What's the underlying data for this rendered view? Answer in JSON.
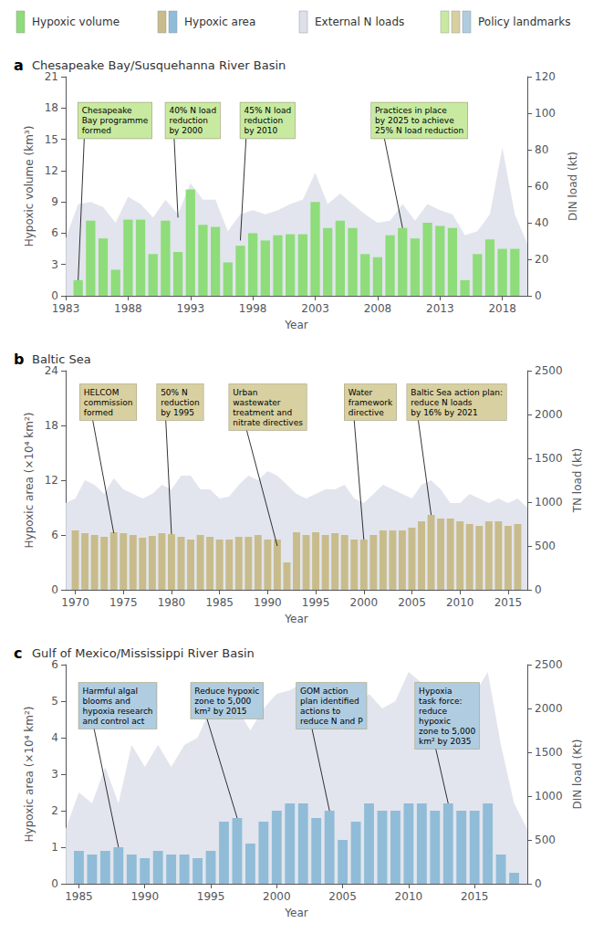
{
  "chart_data": [
    {
      "type": "bar",
      "label": "a",
      "title": "Chesapeake Bay/Susquehanna River Basin",
      "xlabel": "Year",
      "ylabel": "Hypoxic volume (km³)",
      "y2label": "DIN load (kt)",
      "xlim": [
        1983,
        2020
      ],
      "xticks": [
        1983,
        1988,
        1993,
        1998,
        2003,
        2008,
        2013,
        2018
      ],
      "ylim": [
        0,
        21
      ],
      "yticks": [
        0,
        3,
        6,
        9,
        12,
        15,
        18,
        21
      ],
      "y2lim": [
        0,
        120
      ],
      "y2ticks": [
        0,
        20,
        40,
        60,
        80,
        100,
        120
      ],
      "grid": false,
      "legend": "top",
      "series": [
        {
          "name": "Hypoxic volume",
          "type": "bar",
          "color": "#8edc7a",
          "x": [
            1984,
            1985,
            1986,
            1987,
            1988,
            1989,
            1990,
            1991,
            1992,
            1993,
            1994,
            1995,
            1996,
            1997,
            1998,
            1999,
            2000,
            2001,
            2002,
            2003,
            2004,
            2005,
            2006,
            2007,
            2008,
            2009,
            2010,
            2011,
            2012,
            2013,
            2014,
            2015,
            2016,
            2017,
            2018,
            2019
          ],
          "values": [
            1.5,
            7.2,
            5.5,
            2.5,
            7.3,
            7.3,
            4.0,
            7.2,
            4.2,
            10.2,
            6.8,
            6.6,
            3.2,
            4.8,
            6.0,
            5.3,
            5.8,
            5.9,
            5.9,
            9.0,
            6.5,
            7.2,
            6.5,
            4.0,
            3.7,
            5.8,
            6.5,
            5.5,
            7.0,
            6.7,
            6.5,
            1.5,
            4.0,
            5.4,
            4.5,
            4.5
          ]
        },
        {
          "name": "External N loads",
          "type": "area",
          "color": "#dde0ea",
          "x": [
            1983,
            1984,
            1985,
            1986,
            1987,
            1988,
            1989,
            1990,
            1991,
            1992,
            1993,
            1994,
            1995,
            1996,
            1997,
            1998,
            1999,
            2000,
            2001,
            2002,
            2003,
            2004,
            2005,
            2006,
            2007,
            2008,
            2009,
            2010,
            2011,
            2012,
            2013,
            2014,
            2015,
            2016,
            2017,
            2018,
            2019,
            2020
          ],
          "values": [
            5.5,
            8.8,
            9.0,
            8.5,
            7.0,
            9.5,
            8.8,
            7.5,
            9.2,
            7.8,
            10.8,
            9.2,
            9.2,
            6.2,
            7.8,
            8.2,
            7.8,
            8.2,
            8.8,
            9.2,
            11.8,
            8.8,
            9.8,
            8.8,
            7.8,
            7.0,
            7.2,
            8.8,
            7.2,
            8.8,
            8.2,
            7.8,
            5.8,
            6.2,
            7.8,
            14.2,
            7.8,
            5.0
          ]
        }
      ],
      "annotations": {
        "name": "Policy landmarks",
        "color": "#c8eaa0",
        "items": [
          {
            "text": "Chesapeake\nBay programme\nformed",
            "x": 1984,
            "y": 1.5,
            "text_x": 1984.0,
            "text_y": 18.5
          },
          {
            "text": "40% N load\nreduction\nby 2000",
            "x": 1992,
            "y": 7.5,
            "text_x": 1991.0,
            "text_y": 18.5
          },
          {
            "text": "45% N load\nreduction\nby 2010",
            "x": 1997,
            "y": 5.3,
            "text_x": 1997.0,
            "text_y": 18.5
          },
          {
            "text": "Practices in place\nby 2025 to achieve\n25% N load reduction",
            "x": 2010,
            "y": 6.5,
            "text_x": 2007.5,
            "text_y": 18.5
          }
        ]
      }
    },
    {
      "type": "bar",
      "label": "b",
      "title": "Baltic Sea",
      "xlabel": "Year",
      "ylabel": "Hypoxic area (×10⁴ km²)",
      "y2label": "TN load (kt)",
      "xlim": [
        1969,
        2017
      ],
      "xticks": [
        1970,
        1975,
        1980,
        1985,
        1990,
        1995,
        2000,
        2005,
        2010,
        2015
      ],
      "ylim": [
        0,
        24
      ],
      "yticks": [
        0,
        6,
        12,
        18,
        24
      ],
      "y2lim": [
        0,
        2500
      ],
      "y2ticks": [
        0,
        500,
        1000,
        1500,
        2000,
        2500
      ],
      "grid": false,
      "legend": "top",
      "series": [
        {
          "name": "Hypoxic area",
          "type": "bar",
          "color": "#c8bc8c",
          "x": [
            1970,
            1971,
            1972,
            1973,
            1974,
            1975,
            1976,
            1977,
            1978,
            1979,
            1980,
            1981,
            1982,
            1983,
            1984,
            1985,
            1986,
            1987,
            1988,
            1989,
            1990,
            1991,
            1992,
            1993,
            1994,
            1995,
            1996,
            1997,
            1998,
            1999,
            2000,
            2001,
            2002,
            2003,
            2004,
            2005,
            2006,
            2007,
            2008,
            2009,
            2010,
            2011,
            2012,
            2013,
            2014,
            2015,
            2016
          ],
          "values": [
            6.5,
            6.2,
            6.0,
            5.8,
            6.3,
            6.2,
            6.0,
            5.7,
            5.9,
            6.2,
            6.1,
            5.8,
            5.5,
            6.0,
            5.8,
            5.5,
            5.5,
            5.8,
            5.8,
            6.0,
            5.5,
            5.5,
            3.0,
            6.3,
            6.0,
            6.3,
            6.0,
            6.2,
            6.0,
            5.5,
            5.5,
            6.0,
            6.5,
            6.5,
            6.5,
            6.8,
            7.5,
            8.2,
            7.8,
            7.8,
            7.5,
            7.2,
            7.0,
            7.5,
            7.5,
            7.0,
            7.2
          ]
        },
        {
          "name": "External N loads",
          "type": "area",
          "color": "#dde0ea",
          "x": [
            1969,
            1970,
            1971,
            1972,
            1973,
            1974,
            1975,
            1976,
            1977,
            1978,
            1979,
            1980,
            1981,
            1982,
            1983,
            1984,
            1985,
            1986,
            1987,
            1988,
            1989,
            1990,
            1991,
            1992,
            1993,
            1994,
            1995,
            1996,
            1997,
            1998,
            1999,
            2000,
            2001,
            2002,
            2003,
            2004,
            2005,
            2006,
            2007,
            2008,
            2009,
            2010,
            2011,
            2012,
            2013,
            2014,
            2015,
            2016,
            2017
          ],
          "values": [
            9.5,
            10.0,
            12.0,
            11.5,
            10.5,
            12.2,
            11.0,
            10.5,
            10.0,
            10.5,
            11.5,
            11.0,
            12.5,
            12.5,
            11.0,
            11.0,
            10.0,
            10.2,
            11.5,
            12.5,
            12.0,
            13.0,
            12.5,
            11.5,
            10.5,
            10.0,
            10.5,
            11.0,
            11.0,
            11.5,
            10.0,
            9.5,
            10.5,
            11.5,
            11.0,
            10.5,
            10.0,
            11.5,
            12.0,
            11.0,
            9.5,
            9.5,
            10.5,
            10.0,
            9.5,
            10.0,
            9.5,
            10.0,
            9.0
          ]
        }
      ],
      "annotations": {
        "name": "Policy landmarks",
        "color": "#d8d0a0",
        "items": [
          {
            "text": "HELCOM\ncommission\nformed",
            "x": 1974,
            "y": 6.2,
            "text_x": 1970.5,
            "text_y": 22.5
          },
          {
            "text": "50% N\nreduction\nby 1995",
            "x": 1980,
            "y": 6.1,
            "text_x": 1978.5,
            "text_y": 22.5
          },
          {
            "text": "Urban\nwastewater\ntreatment and\nnitrate directives",
            "x": 1991,
            "y": 4.8,
            "text_x": 1986.0,
            "text_y": 22.5
          },
          {
            "text": "Water\nframework\ndirective",
            "x": 2000,
            "y": 5.5,
            "text_x": 1998.0,
            "text_y": 22.5
          },
          {
            "text": "Baltic Sea action plan:\nreduce N loads\nby 16% by 2021",
            "x": 2007,
            "y": 8.2,
            "text_x": 2004.5,
            "text_y": 22.5
          }
        ]
      }
    },
    {
      "type": "bar",
      "label": "c",
      "title": "Gulf of Mexico/Mississippi River Basin",
      "xlabel": "Year",
      "ylabel": "Hypoxic area (×10⁴ km²)",
      "y2label": "DIN load (Kt)",
      "xlim": [
        1984,
        2019
      ],
      "xticks": [
        1985,
        1990,
        1995,
        2000,
        2005,
        2010,
        2015
      ],
      "ylim": [
        0,
        6
      ],
      "yticks": [
        0,
        1,
        2,
        3,
        4,
        5,
        6
      ],
      "y2lim": [
        0,
        2500
      ],
      "y2ticks": [
        0,
        500,
        1000,
        1500,
        2000,
        2500
      ],
      "grid": false,
      "legend": "top",
      "series": [
        {
          "name": "Hypoxic area",
          "type": "bar",
          "color": "#90bcd8",
          "x": [
            1985,
            1986,
            1987,
            1988,
            1989,
            1990,
            1991,
            1992,
            1993,
            1994,
            1995,
            1996,
            1997,
            1998,
            1999,
            2000,
            2001,
            2002,
            2003,
            2004,
            2005,
            2006,
            2007,
            2008,
            2009,
            2010,
            2011,
            2012,
            2013,
            2014,
            2015,
            2016,
            2017,
            2018
          ],
          "values": [
            0.9,
            0.8,
            0.9,
            1.0,
            0.8,
            0.7,
            0.9,
            0.8,
            0.8,
            0.7,
            0.9,
            1.7,
            1.8,
            1.1,
            1.7,
            2.0,
            2.2,
            2.2,
            1.8,
            2.0,
            1.2,
            1.7,
            2.2,
            2.0,
            2.0,
            2.2,
            2.2,
            2.0,
            2.2,
            2.0,
            2.0,
            2.2,
            0.8,
            0.3
          ]
        },
        {
          "name": "External N loads",
          "type": "area",
          "color": "#dde0ea",
          "x": [
            1984,
            1985,
            1986,
            1987,
            1988,
            1989,
            1990,
            1991,
            1992,
            1993,
            1994,
            1995,
            1996,
            1997,
            1998,
            1999,
            2000,
            2001,
            2002,
            2003,
            2004,
            2005,
            2006,
            2007,
            2008,
            2009,
            2010,
            2011,
            2012,
            2013,
            2014,
            2015,
            2016,
            2017,
            2018,
            2019
          ],
          "values": [
            1.5,
            2.5,
            2.2,
            3.2,
            2.2,
            3.8,
            3.2,
            3.8,
            3.2,
            3.8,
            4.0,
            4.8,
            4.8,
            4.8,
            4.2,
            4.8,
            5.2,
            5.3,
            5.5,
            4.8,
            5.2,
            4.2,
            4.8,
            5.2,
            4.8,
            5.0,
            5.8,
            5.5,
            5.2,
            5.0,
            5.2,
            5.2,
            5.8,
            3.8,
            2.2,
            1.5
          ]
        }
      ],
      "annotations": {
        "name": "Policy landmarks",
        "color": "#b0cce0",
        "items": [
          {
            "text": "Harmful algal\nblooms and\nhypoxia research\nand control act",
            "x": 1988,
            "y": 1.0,
            "text_x": 1985.0,
            "text_y": 5.5
          },
          {
            "text": "Reduce hypoxic\nzone to 5,000\nkm² by 2015",
            "x": 1997,
            "y": 1.8,
            "text_x": 1993.5,
            "text_y": 5.5
          },
          {
            "text": "GOM action\nplan identified\nactions to\nreduce N and P",
            "x": 2004,
            "y": 2.0,
            "text_x": 2001.5,
            "text_y": 5.5
          },
          {
            "text": "Hypoxia\ntask force:\nreduce\nhypoxic\nzone to 5,000\nkm² by 2035",
            "x": 2013,
            "y": 2.2,
            "text_x": 2010.5,
            "text_y": 5.5
          }
        ]
      }
    }
  ]
}
